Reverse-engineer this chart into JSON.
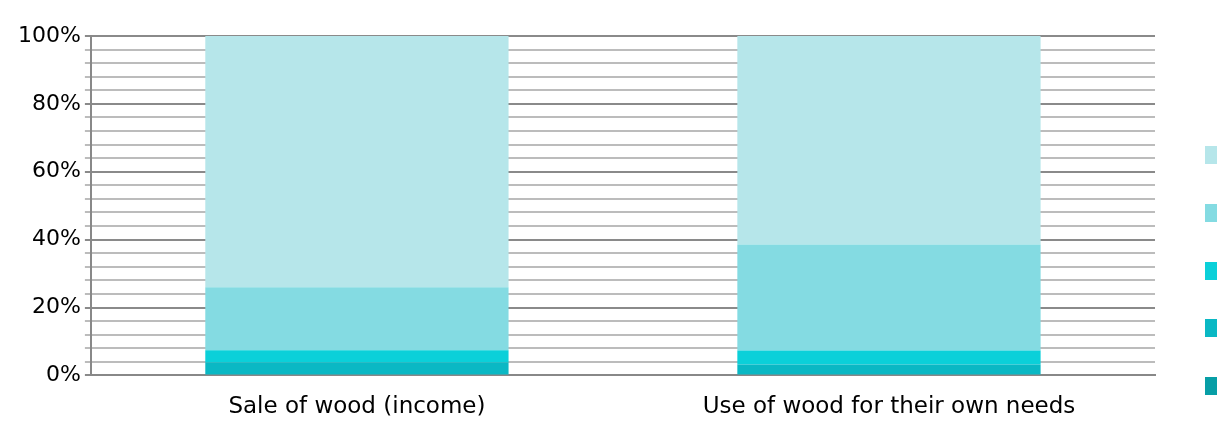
{
  "chart_data": {
    "type": "bar",
    "stacked": true,
    "categories": [
      "Sale of wood (income)",
      "Use of wood for their own needs"
    ],
    "series": [
      {
        "color": "#079ea6",
        "values": [
          0,
          0
        ]
      },
      {
        "color": "#0ab8c4",
        "values": [
          3.9,
          3.2
        ]
      },
      {
        "color": "#0bd0d9",
        "values": [
          3.5,
          4.1
        ]
      },
      {
        "color": "#84dbe2",
        "values": [
          18.6,
          31.3
        ]
      },
      {
        "color": "#b6e6ea",
        "values": [
          74,
          61.4
        ]
      }
    ],
    "ylim": [
      0,
      100
    ],
    "yticks": [
      {
        "value": 0,
        "label": "0%"
      },
      {
        "value": 4,
        "label": null
      },
      {
        "value": 8,
        "label": null
      },
      {
        "value": 12,
        "label": null
      },
      {
        "value": 16,
        "label": null
      },
      {
        "value": 20,
        "label": "20%"
      },
      {
        "value": 24,
        "label": null
      },
      {
        "value": 28,
        "label": null
      },
      {
        "value": 32,
        "label": null
      },
      {
        "value": 36,
        "label": null
      },
      {
        "value": 40,
        "label": "40%"
      },
      {
        "value": 44,
        "label": null
      },
      {
        "value": 48,
        "label": null
      },
      {
        "value": 52,
        "label": null
      },
      {
        "value": 56,
        "label": null
      },
      {
        "value": 60,
        "label": "60%"
      },
      {
        "value": 64,
        "label": null
      },
      {
        "value": 68,
        "label": null
      },
      {
        "value": 72,
        "label": null
      },
      {
        "value": 76,
        "label": null
      },
      {
        "value": 80,
        "label": "80%"
      },
      {
        "value": 84,
        "label": null
      },
      {
        "value": 88,
        "label": null
      },
      {
        "value": 92,
        "label": null
      },
      {
        "value": 96,
        "label": null
      },
      {
        "value": 100,
        "label": "100%"
      }
    ],
    "grid": "y"
  }
}
